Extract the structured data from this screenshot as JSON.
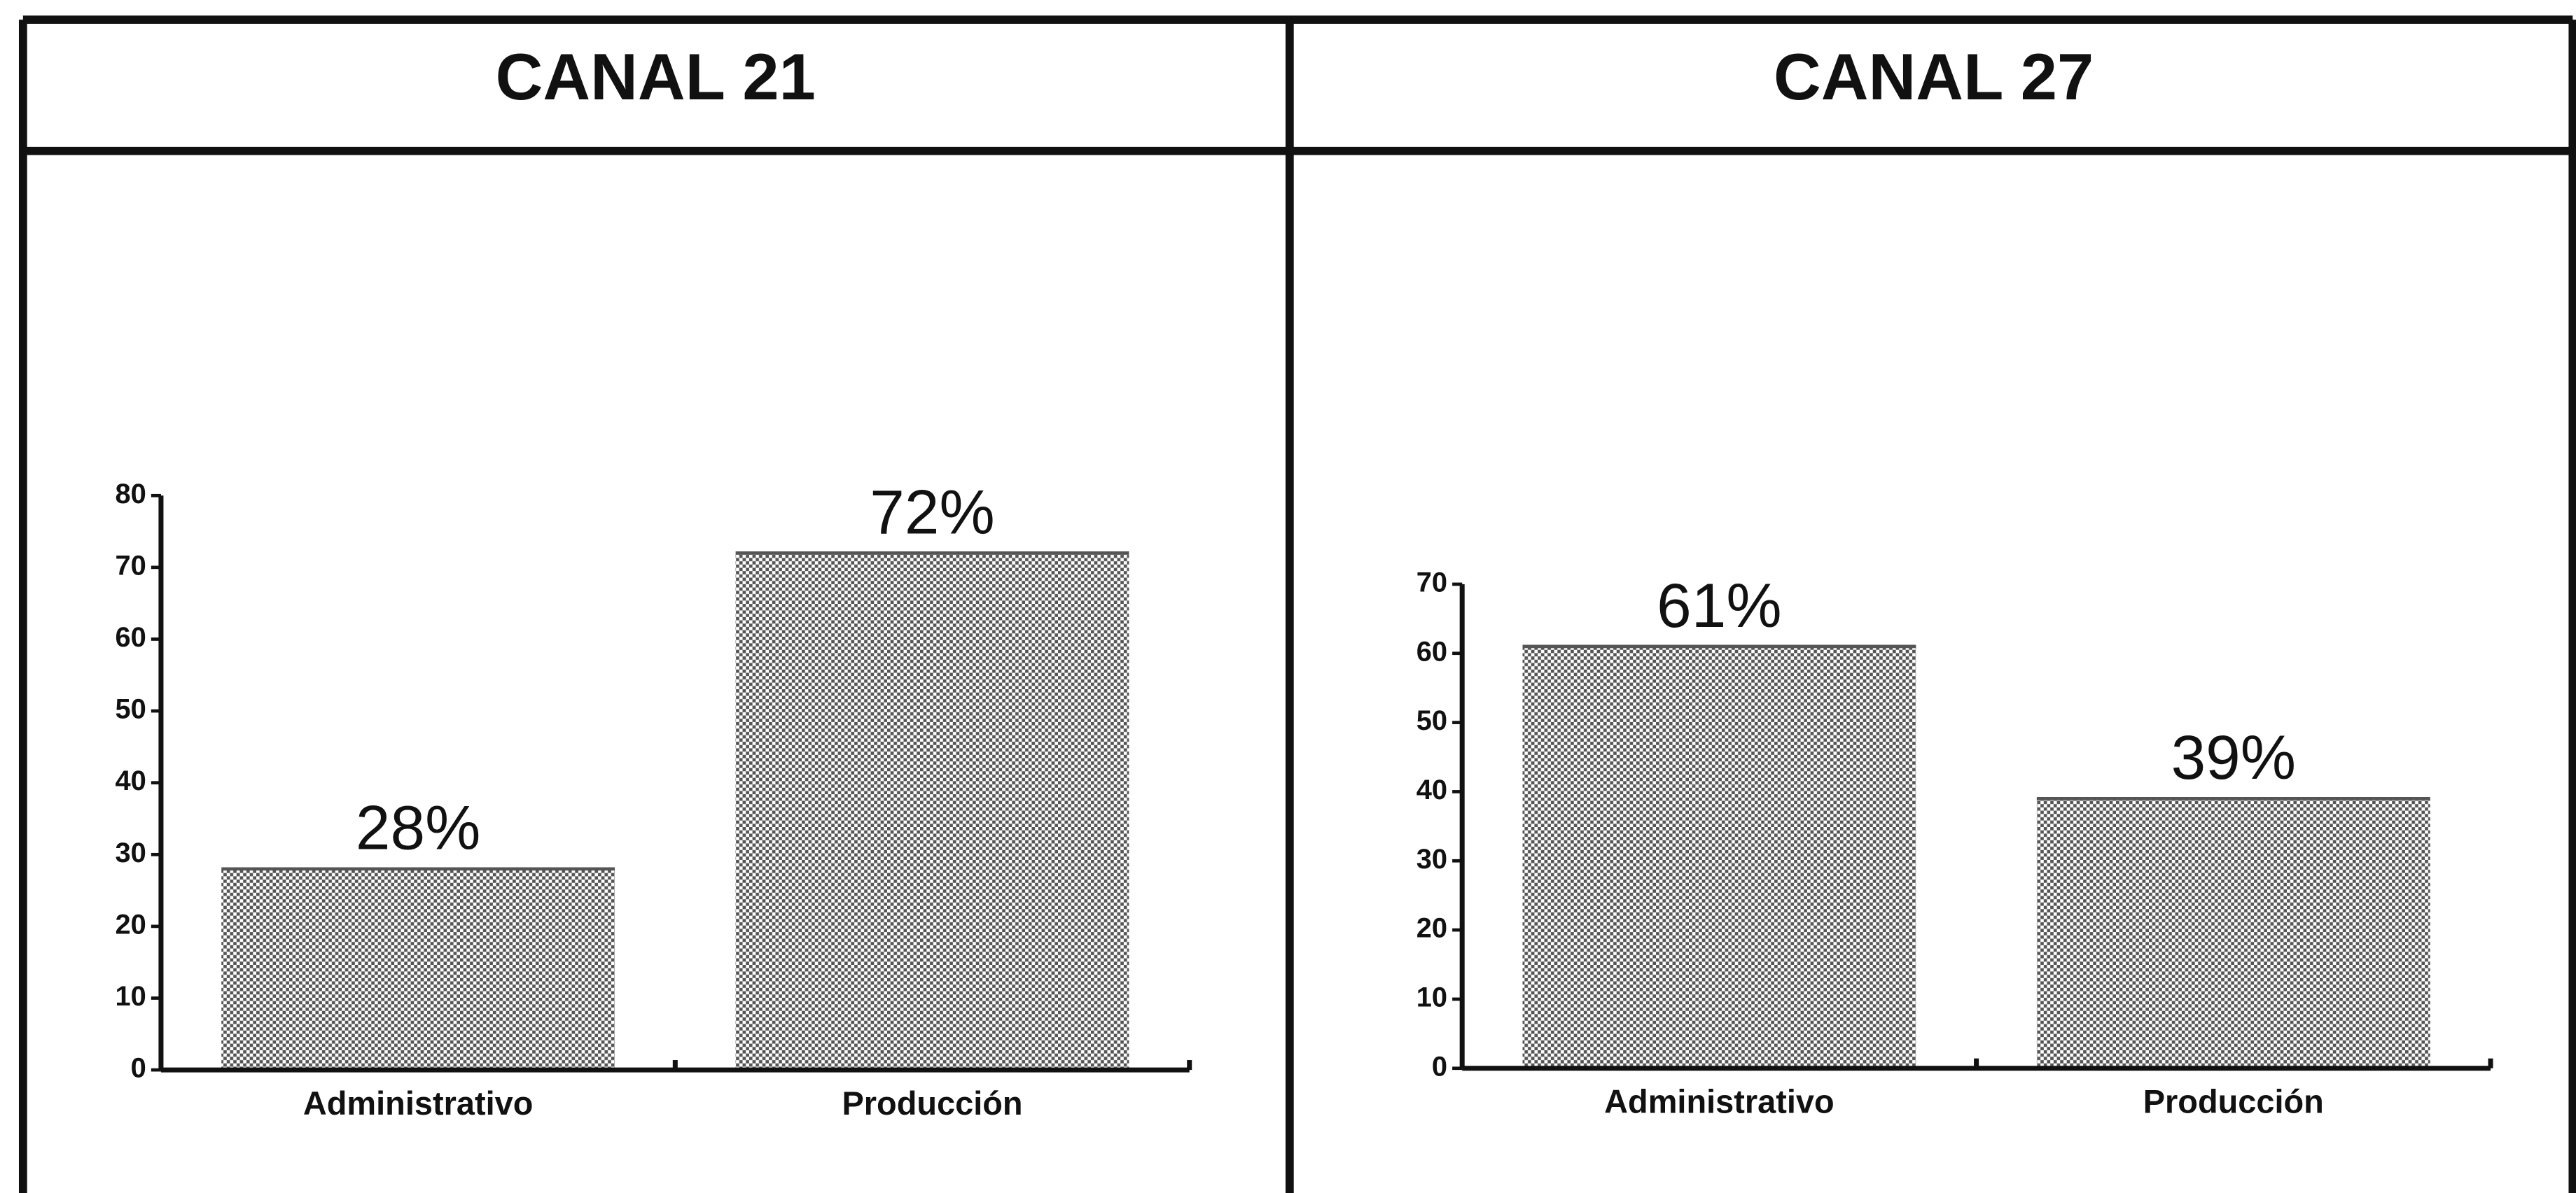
{
  "chart_data": [
    {
      "type": "bar",
      "title": "CANAL 21",
      "categories": [
        "Administrativo",
        "Producción"
      ],
      "values": [
        28,
        72
      ],
      "value_labels": [
        "28%",
        "72%"
      ],
      "color": "#555555",
      "ylim": [
        0,
        80
      ],
      "yticks": [
        0,
        10,
        20,
        30,
        40,
        50,
        60,
        70,
        80
      ]
    },
    {
      "type": "bar",
      "title": "CANAL 27",
      "categories": [
        "Administrativo",
        "Producción"
      ],
      "values": [
        61,
        39
      ],
      "value_labels": [
        "61%",
        "39%"
      ],
      "color": "#555555",
      "ylim": [
        0,
        70
      ],
      "yticks": [
        0,
        10,
        20,
        30,
        40,
        50,
        60,
        70
      ]
    }
  ]
}
